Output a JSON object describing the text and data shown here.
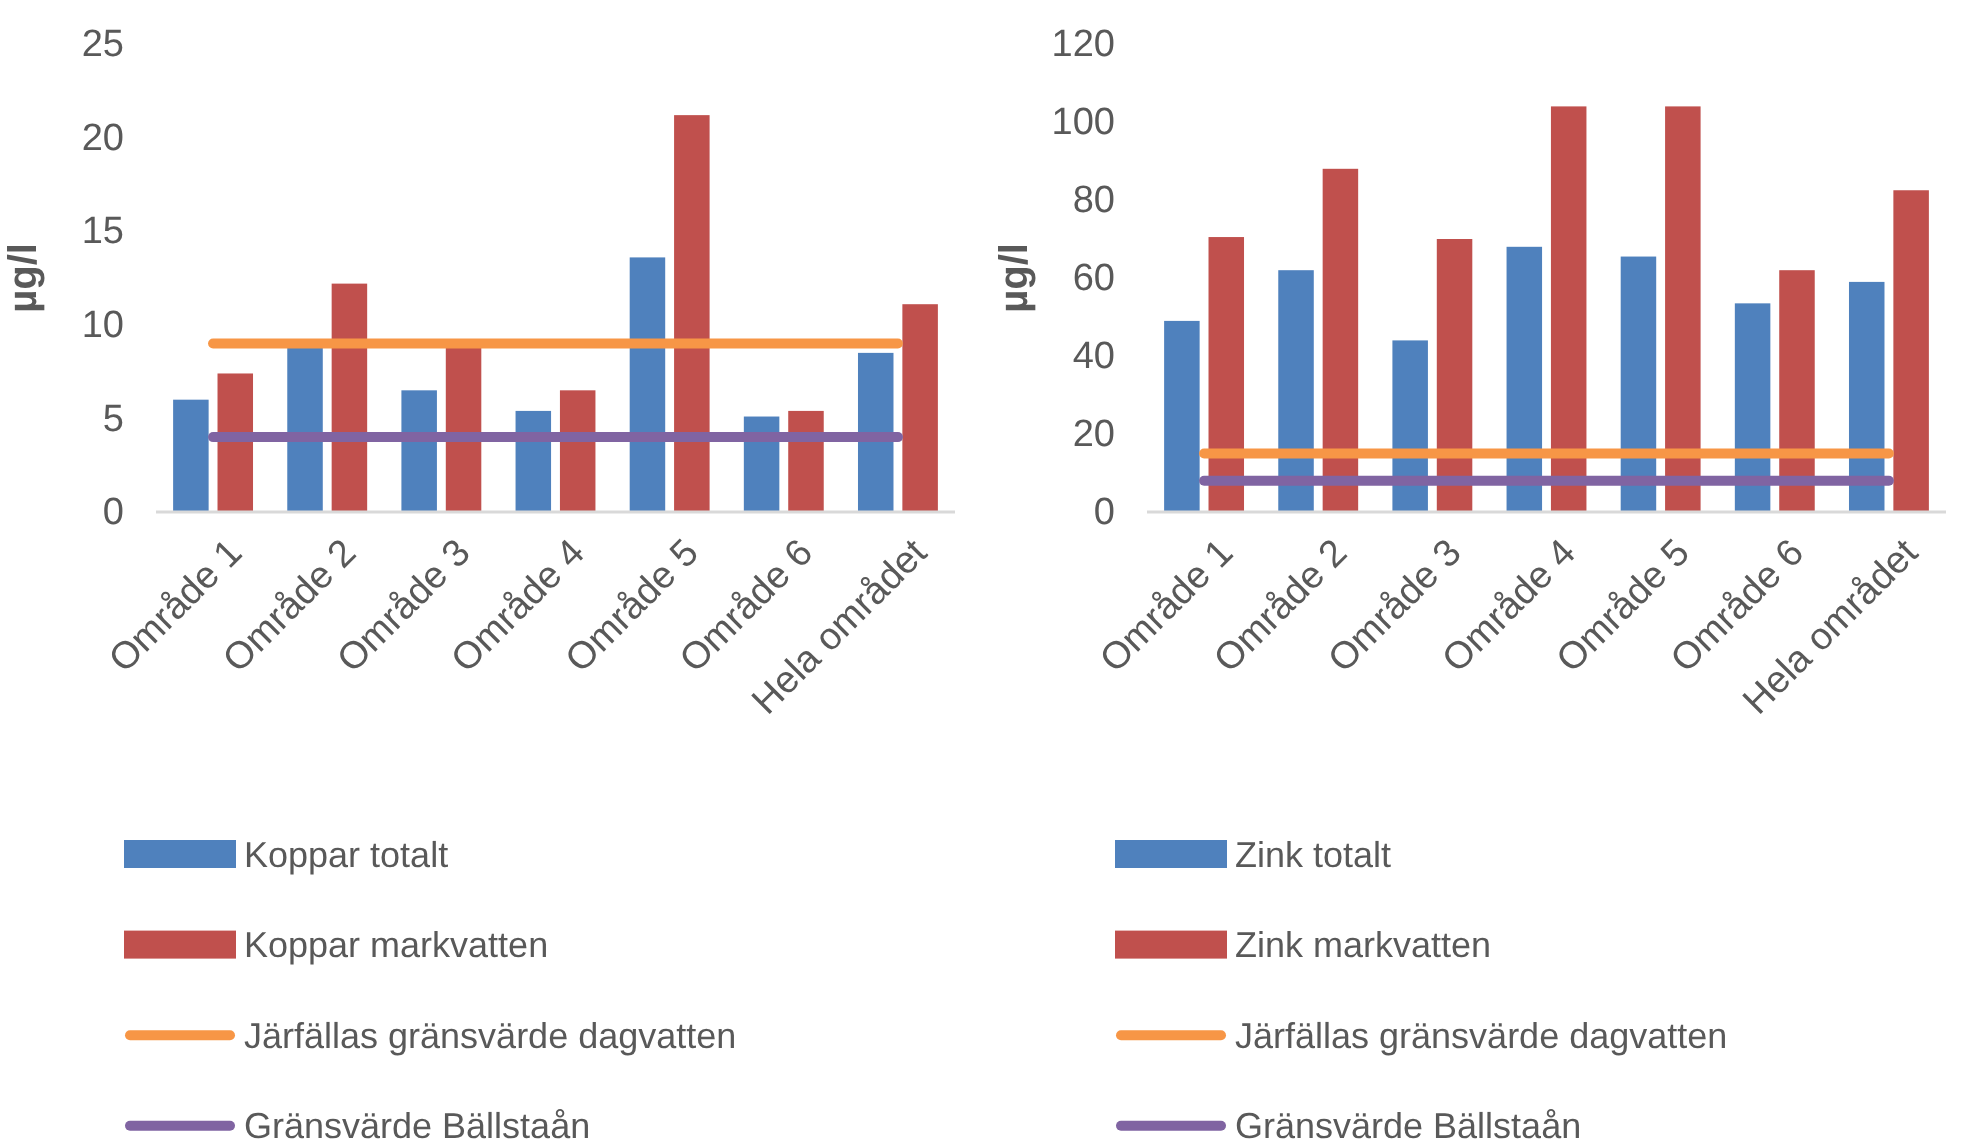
{
  "chart_data": [
    {
      "type": "bar",
      "ylabel": "µg/l",
      "categories": [
        "Område 1",
        "Område 2",
        "Område 3",
        "Område 4",
        "Område 5",
        "Område 6",
        "Hela området"
      ],
      "ylim": [
        0,
        25
      ],
      "yticks": [
        0,
        5,
        10,
        15,
        20,
        25
      ],
      "grid": false,
      "legend": "bottom",
      "series": [
        {
          "name": "Koppar totalt",
          "color": "#4f81bd",
          "values": [
            6.0,
            9.0,
            6.5,
            5.4,
            13.6,
            5.1,
            8.5
          ]
        },
        {
          "name": "Koppar markvatten",
          "color": "#c0504d",
          "values": [
            7.4,
            12.2,
            9.0,
            6.5,
            21.2,
            5.4,
            11.1
          ]
        },
        {
          "name": "Järfällas gränsvärde dagvatten",
          "type": "line",
          "color": "#f79646",
          "values": [
            9,
            9,
            9,
            9,
            9,
            9,
            9
          ]
        },
        {
          "name": "Gränsvärde Bällstaån",
          "type": "line",
          "color": "#8064a2",
          "values": [
            4,
            4,
            4,
            4,
            4,
            4,
            4
          ]
        }
      ]
    },
    {
      "type": "bar",
      "ylabel": "µg/l",
      "categories": [
        "Område 1",
        "Område 2",
        "Område 3",
        "Område 4",
        "Område 5",
        "Område 6",
        "Hela området"
      ],
      "ylim": [
        0,
        120
      ],
      "yticks": [
        0,
        20,
        40,
        60,
        80,
        100,
        120
      ],
      "grid": false,
      "legend": "bottom",
      "series": [
        {
          "name": "Zink totalt",
          "color": "#4f81bd",
          "values": [
            49,
            62,
            44,
            68,
            65.5,
            53.5,
            59
          ]
        },
        {
          "name": "Zink markvatten",
          "color": "#c0504d",
          "values": [
            70.5,
            88,
            70,
            104,
            104,
            62,
            82.5
          ]
        },
        {
          "name": "Järfällas gränsvärde dagvatten",
          "type": "line",
          "color": "#f79646",
          "values": [
            15,
            15,
            15,
            15,
            15,
            15,
            15
          ]
        },
        {
          "name": "Gränsvärde Bällstaån",
          "type": "line",
          "color": "#8064a2",
          "values": [
            8,
            8,
            8,
            8,
            8,
            8,
            8
          ]
        }
      ]
    }
  ]
}
